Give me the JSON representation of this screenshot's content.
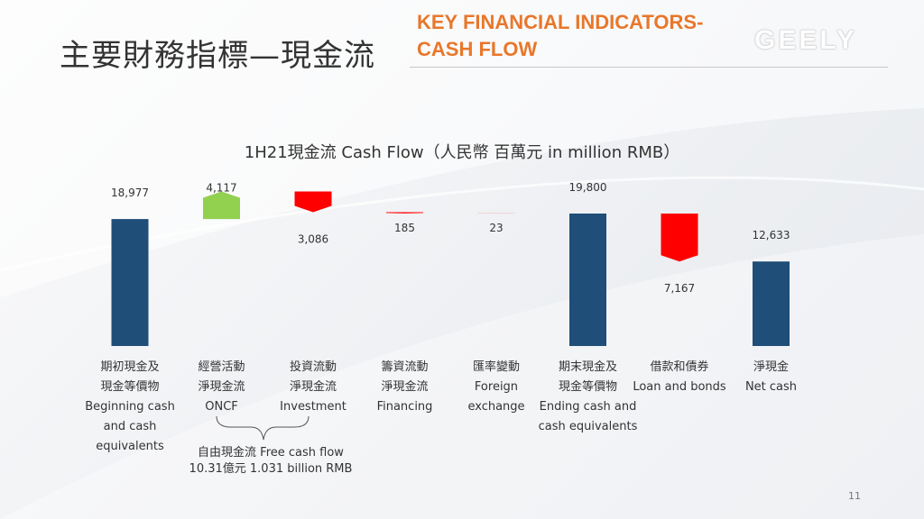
{
  "header": {
    "title_cn": "主要財務指標—現金流",
    "title_en_line1": "KEY FINANCIAL INDICATORS-",
    "title_en_line2": "CASH FLOW",
    "logo": "GEELY"
  },
  "page_number": "11",
  "chart_data": {
    "type": "bar",
    "subtype": "waterfall",
    "title": "1H21現金流 Cash Flow（人民幣 百萬元 in million RMB）",
    "categories": [
      [
        "期初現金及",
        "現金等價物",
        "Beginning cash",
        "and cash",
        "equivalents"
      ],
      [
        "經營活動",
        "淨現金流",
        "ONCF"
      ],
      [
        "投資流動",
        "淨現金流",
        "Investment"
      ],
      [
        "籌資流動",
        "淨現金流",
        "Financing"
      ],
      [
        "匯率變動",
        "Foreign",
        "exchange"
      ],
      [
        "期末現金及",
        "現金等價物",
        "Ending cash and",
        "cash equivalents"
      ],
      [
        "借款和債券",
        "Loan and bonds"
      ],
      [
        "淨現金",
        "Net cash"
      ]
    ],
    "values": [
      18977,
      4117,
      -3086,
      -185,
      -23,
      19800,
      -7167,
      12633
    ],
    "labels": [
      "18,977",
      "4,117",
      "3,086",
      "185",
      "23",
      "19,800",
      "7,167",
      "12,633"
    ],
    "kinds": [
      "total",
      "increase",
      "decrease",
      "decrease",
      "decrease",
      "total",
      "decrease",
      "total"
    ],
    "colors": {
      "total": "#1f4e79",
      "increase": "#92d050",
      "decrease": "#ff0000"
    },
    "annotation": {
      "line1": "自由現金流 Free cash flow",
      "line2": "10.31億元 1.031 billion RMB"
    }
  }
}
